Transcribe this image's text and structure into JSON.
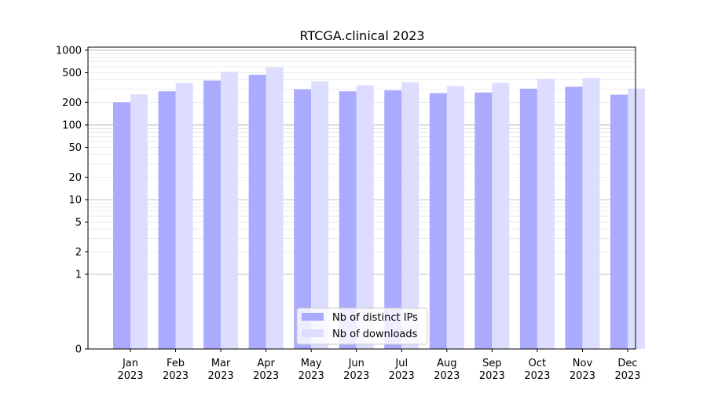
{
  "chart_data": {
    "type": "bar",
    "title": "RTCGA.clinical 2023",
    "xlabel": "",
    "ylabel": "",
    "yscale": "symlog",
    "ylim": [
      0,
      1100
    ],
    "yticks": [
      0,
      1,
      2,
      5,
      10,
      20,
      50,
      100,
      200,
      500,
      1000
    ],
    "ytick_labels": [
      "0",
      "1",
      "2",
      "5",
      "10",
      "20",
      "50",
      "100",
      "200",
      "500",
      "1000"
    ],
    "grid": true,
    "legend_position": "bottom-center",
    "categories": [
      [
        "Jan",
        "2023"
      ],
      [
        "Feb",
        "2023"
      ],
      [
        "Mar",
        "2023"
      ],
      [
        "Apr",
        "2023"
      ],
      [
        "May",
        "2023"
      ],
      [
        "Jun",
        "2023"
      ],
      [
        "Jul",
        "2023"
      ],
      [
        "Aug",
        "2023"
      ],
      [
        "Sep",
        "2023"
      ],
      [
        "Oct",
        "2023"
      ],
      [
        "Nov",
        "2023"
      ],
      [
        "Dec",
        "2023"
      ]
    ],
    "series": [
      {
        "name": "Nb of distinct IPs",
        "color": "#aaaaff",
        "values": [
          200,
          282,
          393,
          470,
          301,
          282,
          291,
          267,
          272,
          306,
          325,
          254
        ]
      },
      {
        "name": "Nb of downloads",
        "color": "#ddddff",
        "values": [
          257,
          365,
          515,
          590,
          385,
          340,
          372,
          332,
          366,
          415,
          425,
          307
        ]
      }
    ]
  }
}
